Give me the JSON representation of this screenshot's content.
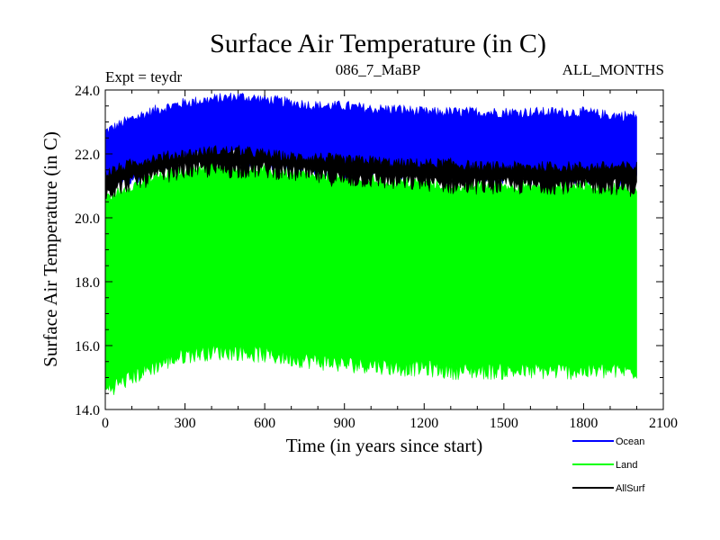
{
  "chart_data": {
    "type": "area",
    "title": "Surface Air Temperature (in C)",
    "subtitle_left": "Expt = teydr",
    "subtitle_center": "086_7_MaBP",
    "subtitle_right": "ALL_MONTHS",
    "xlabel": "Time (in years since start)",
    "ylabel": "Surface Air Temperature (in C)",
    "xlim": [
      0,
      2100
    ],
    "ylim": [
      14.0,
      24.0
    ],
    "x_ticks": [
      0,
      300,
      600,
      900,
      1200,
      1500,
      1800,
      2100
    ],
    "x_tick_labels": [
      "0",
      "300",
      "600",
      "900",
      "1200",
      "1500",
      "1800",
      "2100"
    ],
    "y_ticks": [
      14.0,
      16.0,
      18.0,
      20.0,
      22.0,
      24.0
    ],
    "y_tick_labels": [
      "14.0",
      "16.0",
      "18.0",
      "20.0",
      "22.0",
      "24.0"
    ],
    "legend_position": "bottom-right",
    "series": [
      {
        "name": "Ocean",
        "color": "#0000ff",
        "band": true,
        "x": [
          0,
          100,
          200,
          300,
          400,
          500,
          600,
          700,
          800,
          900,
          1000,
          1100,
          1200,
          1300,
          1400,
          1500,
          1600,
          1700,
          1800,
          1900,
          2000
        ],
        "min": [
          21.0,
          21.3,
          21.6,
          21.8,
          21.9,
          21.9,
          21.8,
          21.7,
          21.6,
          21.5,
          21.5,
          21.4,
          21.4,
          21.3,
          21.3,
          21.3,
          21.3,
          21.3,
          21.3,
          21.2,
          21.2
        ],
        "max": [
          22.7,
          23.1,
          23.4,
          23.6,
          23.7,
          23.8,
          23.7,
          23.6,
          23.5,
          23.5,
          23.4,
          23.4,
          23.3,
          23.3,
          23.3,
          23.3,
          23.3,
          23.3,
          23.3,
          23.2,
          23.2
        ]
      },
      {
        "name": "Land",
        "color": "#00ff00",
        "band": true,
        "x": [
          0,
          100,
          200,
          300,
          400,
          500,
          600,
          700,
          800,
          900,
          1000,
          1100,
          1200,
          1300,
          1400,
          1500,
          1600,
          1700,
          1800,
          1900,
          2000
        ],
        "min": [
          14.6,
          15.0,
          15.4,
          15.7,
          15.8,
          15.8,
          15.7,
          15.6,
          15.5,
          15.4,
          15.4,
          15.3,
          15.3,
          15.2,
          15.2,
          15.2,
          15.2,
          15.2,
          15.2,
          15.2,
          15.2
        ],
        "max": [
          20.6,
          21.0,
          21.3,
          21.5,
          21.6,
          21.6,
          21.5,
          21.4,
          21.3,
          21.2,
          21.2,
          21.1,
          21.1,
          21.0,
          21.0,
          21.0,
          21.0,
          21.0,
          21.0,
          21.0,
          20.9
        ]
      },
      {
        "name": "AllSurf",
        "color": "#000000",
        "band": true,
        "x": [
          0,
          100,
          200,
          300,
          400,
          500,
          600,
          700,
          800,
          900,
          1000,
          1100,
          1200,
          1300,
          1400,
          1500,
          1600,
          1700,
          1800,
          1900,
          2000
        ],
        "min": [
          20.8,
          21.1,
          21.3,
          21.5,
          21.5,
          21.5,
          21.5,
          21.4,
          21.3,
          21.2,
          21.2,
          21.1,
          21.1,
          21.0,
          21.0,
          21.0,
          21.0,
          21.0,
          21.0,
          21.0,
          20.9
        ],
        "max": [
          21.4,
          21.7,
          21.9,
          22.0,
          22.1,
          22.1,
          22.0,
          21.9,
          21.9,
          21.8,
          21.8,
          21.7,
          21.7,
          21.7,
          21.6,
          21.6,
          21.6,
          21.6,
          21.6,
          21.6,
          21.6
        ]
      }
    ]
  }
}
